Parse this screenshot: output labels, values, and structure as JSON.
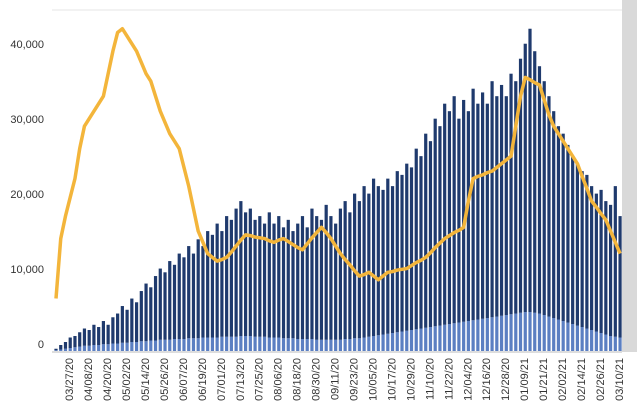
{
  "chart_data": {
    "type": "stacked-bar-line",
    "categories": [
      null,
      null,
      null,
      "03/27/20",
      null,
      null,
      null,
      "04/08/20",
      null,
      null,
      null,
      "04/20/20",
      null,
      null,
      null,
      "05/02/20",
      null,
      null,
      null,
      "05/14/20",
      null,
      null,
      null,
      "05/26/20",
      null,
      null,
      null,
      "06/07/20",
      null,
      null,
      null,
      "06/19/20",
      null,
      null,
      null,
      "07/01/20",
      null,
      null,
      null,
      "07/13/20",
      null,
      null,
      null,
      "07/25/20",
      null,
      null,
      null,
      "08/06/20",
      null,
      null,
      null,
      "08/18/20",
      null,
      null,
      null,
      "08/30/20",
      null,
      null,
      null,
      "09/11/20",
      null,
      null,
      null,
      "09/23/20",
      null,
      null,
      null,
      "10/05/20",
      null,
      null,
      null,
      "10/17/20",
      null,
      null,
      null,
      "10/29/20",
      null,
      null,
      null,
      "11/10/20",
      null,
      null,
      null,
      "11/22/20",
      null,
      null,
      null,
      "12/04/20",
      null,
      null,
      null,
      "12/16/20",
      null,
      null,
      null,
      "12/28/20",
      null,
      null,
      null,
      "01/09/21",
      null,
      null,
      null,
      "01/21/21",
      null,
      null,
      null,
      "02/02/21",
      null,
      null,
      null,
      "02/14/21",
      null,
      null,
      null,
      "02/26/21",
      null,
      null,
      null,
      "03/10/21"
    ],
    "series": [
      {
        "color": "#5b7fc2",
        "kind": "bar",
        "values": [
          100,
          200,
          300,
          400,
          500,
          600,
          700,
          700,
          800,
          800,
          900,
          900,
          1000,
          1000,
          1100,
          1100,
          1200,
          1200,
          1300,
          1300,
          1400,
          1400,
          1500,
          1500,
          1500,
          1600,
          1600,
          1600,
          1700,
          1700,
          1700,
          1800,
          1800,
          1800,
          1800,
          1900,
          1900,
          1900,
          1900,
          2000,
          2000,
          2000,
          1900,
          1900,
          1900,
          1800,
          1800,
          1800,
          1700,
          1700,
          1700,
          1600,
          1600,
          1600,
          1600,
          1500,
          1500,
          1500,
          1500,
          1500,
          1500,
          1600,
          1600,
          1700,
          1700,
          1800,
          1900,
          2000,
          2100,
          2200,
          2300,
          2400,
          2500,
          2600,
          2700,
          2800,
          2900,
          3000,
          3100,
          3200,
          3300,
          3400,
          3500,
          3600,
          3700,
          3800,
          3900,
          4000,
          4100,
          4200,
          4300,
          4400,
          4500,
          4600,
          4700,
          4800,
          4900,
          5000,
          5100,
          5200,
          5200,
          5100,
          5000,
          4800,
          4600,
          4400,
          4200,
          4000,
          3800,
          3600,
          3400,
          3200,
          3000,
          2800,
          2600,
          2400,
          2200,
          2000,
          1900,
          1800
        ]
      },
      {
        "color": "#1f3a6d",
        "kind": "bar",
        "values": [
          200,
          600,
          900,
          1400,
          1500,
          1900,
          2300,
          2100,
          2700,
          2400,
          3100,
          2600,
          3500,
          4000,
          4900,
          4400,
          5800,
          5300,
          6700,
          7700,
          7100,
          8600,
          9500,
          9000,
          10500,
          9900,
          11400,
          10900,
          12300,
          11300,
          13200,
          12200,
          14200,
          13700,
          15200,
          14100,
          16100,
          15600,
          17100,
          18000,
          16500,
          17000,
          15600,
          16100,
          15100,
          16700,
          15200,
          16200,
          14800,
          15800,
          14300,
          15400,
          16400,
          14900,
          17400,
          16500,
          16000,
          18000,
          16500,
          15500,
          17500,
          18400,
          16900,
          19300,
          18300,
          20200,
          19100,
          21000,
          19900,
          19300,
          20700,
          19600,
          21500,
          20900,
          22300,
          21700,
          24100,
          23000,
          25900,
          24800,
          27700,
          26600,
          29500,
          28400,
          30300,
          27200,
          29600,
          28000,
          30900,
          28800,
          30200,
          28600,
          31500,
          29400,
          30800,
          29200,
          32100,
          31000,
          33900,
          35800,
          37800,
          34900,
          33000,
          31200,
          29400,
          27600,
          25800,
          25000,
          23700,
          22400,
          21600,
          20800,
          20500,
          19200,
          18400,
          19100,
          17800,
          17500,
          20100,
          16200
        ]
      },
      {
        "color": "#f3b53b",
        "kind": "line",
        "values": [
          7000,
          15000,
          18000,
          20500,
          23000,
          27000,
          30000,
          31000,
          32000,
          33000,
          34000,
          37000,
          40000,
          42500,
          43000,
          42000,
          41000,
          40000,
          38500,
          37000,
          36000,
          34000,
          32000,
          30500,
          29000,
          28000,
          27000,
          24500,
          22000,
          19000,
          16000,
          14500,
          13000,
          12500,
          12000,
          12200,
          12500,
          13200,
          14000,
          14800,
          15500,
          15400,
          15200,
          15100,
          15000,
          14700,
          14500,
          14800,
          15000,
          14600,
          14200,
          13800,
          13500,
          14300,
          15100,
          15800,
          16500,
          15800,
          15000,
          14000,
          13000,
          12200,
          11500,
          10700,
          10000,
          10200,
          10500,
          10000,
          9500,
          10000,
          10500,
          10600,
          10800,
          10900,
          11000,
          11400,
          11800,
          12100,
          12500,
          13100,
          13800,
          14400,
          15000,
          15400,
          15800,
          16100,
          16500,
          20000,
          23000,
          23300,
          23500,
          23800,
          24000,
          24500,
          25000,
          25500,
          26000,
          30000,
          34000,
          36500,
          36200,
          35800,
          35500,
          33500,
          31500,
          30000,
          29000,
          28000,
          27000,
          26000,
          25000,
          23300,
          21700,
          20000,
          19200,
          18300,
          17500,
          16000,
          14500,
          13000
        ]
      }
    ],
    "ylim": [
      0,
      45500
    ],
    "yticks": [
      0,
      {
        "value": 10000,
        "label": "10,000"
      },
      {
        "value": 20000,
        "label": "20,000"
      },
      {
        "value": 30000,
        "label": "30,000"
      },
      {
        "value": 40000,
        "label": "40,000"
      }
    ]
  }
}
